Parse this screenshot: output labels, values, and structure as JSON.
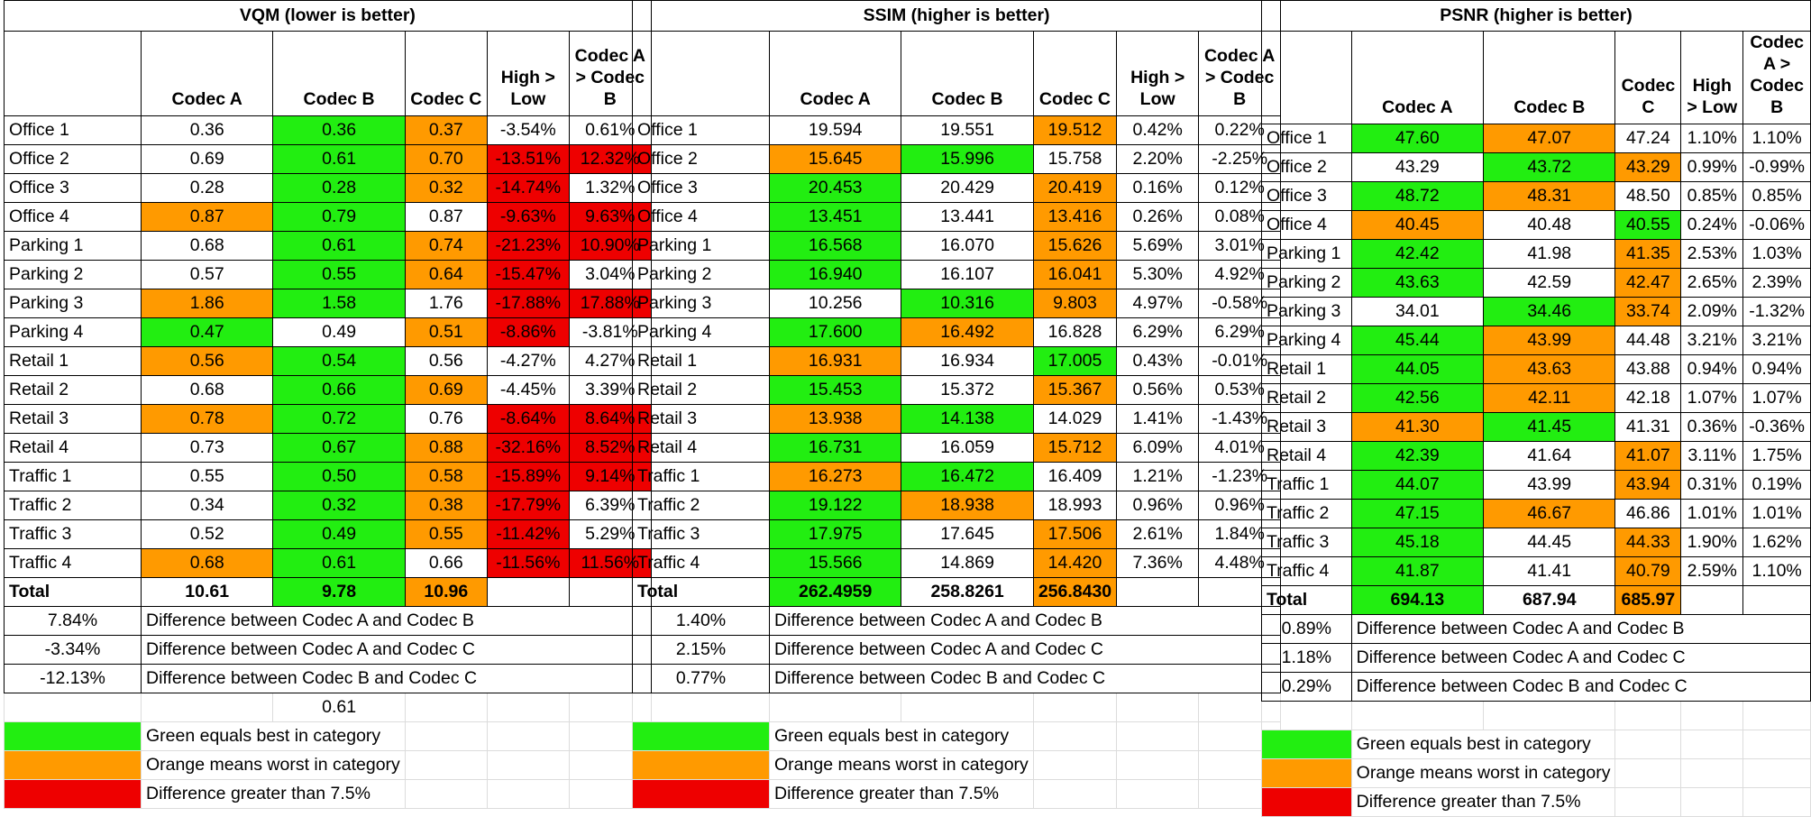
{
  "panels": [
    {
      "title": "VQM (lower is better)",
      "headers": [
        "",
        "Codec A",
        "Codec B",
        "Codec C",
        "High > Low",
        "Codec A > Codec B"
      ],
      "rows": [
        {
          "label": "Office 1",
          "a": "0.36",
          "b": "0.36",
          "c": "0.37",
          "hl": "-3.54%",
          "ab": "0.61%",
          "ca": "",
          "cb": "G",
          "cc": "O",
          "chl": "",
          "cab": ""
        },
        {
          "label": "Office 2",
          "a": "0.69",
          "b": "0.61",
          "c": "0.70",
          "hl": "-13.51%",
          "ab": "12.32%",
          "ca": "",
          "cb": "G",
          "cc": "O",
          "chl": "R",
          "cab": "R"
        },
        {
          "label": "Office 3",
          "a": "0.28",
          "b": "0.28",
          "c": "0.32",
          "hl": "-14.74%",
          "ab": "1.32%",
          "ca": "",
          "cb": "G",
          "cc": "O",
          "chl": "R",
          "cab": ""
        },
        {
          "label": "Office 4",
          "a": "0.87",
          "b": "0.79",
          "c": "0.87",
          "hl": "-9.63%",
          "ab": "9.63%",
          "ca": "O",
          "cb": "G",
          "cc": "",
          "chl": "R",
          "cab": "R"
        },
        {
          "label": "Parking 1",
          "a": "0.68",
          "b": "0.61",
          "c": "0.74",
          "hl": "-21.23%",
          "ab": "10.90%",
          "ca": "",
          "cb": "G",
          "cc": "O",
          "chl": "R",
          "cab": "R"
        },
        {
          "label": "Parking 2",
          "a": "0.57",
          "b": "0.55",
          "c": "0.64",
          "hl": "-15.47%",
          "ab": "3.04%",
          "ca": "",
          "cb": "G",
          "cc": "O",
          "chl": "R",
          "cab": ""
        },
        {
          "label": "Parking 3",
          "a": "1.86",
          "b": "1.58",
          "c": "1.76",
          "hl": "-17.88%",
          "ab": "17.88%",
          "ca": "O",
          "cb": "G",
          "cc": "",
          "chl": "R",
          "cab": "R"
        },
        {
          "label": "Parking 4",
          "a": "0.47",
          "b": "0.49",
          "c": "0.51",
          "hl": "-8.86%",
          "ab": "-3.81%",
          "ca": "G",
          "cb": "",
          "cc": "O",
          "chl": "R",
          "cab": ""
        },
        {
          "label": "Retail 1",
          "a": "0.56",
          "b": "0.54",
          "c": "0.56",
          "hl": "-4.27%",
          "ab": "4.27%",
          "ca": "O",
          "cb": "G",
          "cc": "",
          "chl": "",
          "cab": ""
        },
        {
          "label": "Retail 2",
          "a": "0.68",
          "b": "0.66",
          "c": "0.69",
          "hl": "-4.45%",
          "ab": "3.39%",
          "ca": "",
          "cb": "G",
          "cc": "O",
          "chl": "",
          "cab": ""
        },
        {
          "label": "Retail 3",
          "a": "0.78",
          "b": "0.72",
          "c": "0.76",
          "hl": "-8.64%",
          "ab": "8.64%",
          "ca": "O",
          "cb": "G",
          "cc": "",
          "chl": "R",
          "cab": "R"
        },
        {
          "label": "Retail 4",
          "a": "0.73",
          "b": "0.67",
          "c": "0.88",
          "hl": "-32.16%",
          "ab": "8.52%",
          "ca": "",
          "cb": "G",
          "cc": "O",
          "chl": "R",
          "cab": "R"
        },
        {
          "label": "Traffic 1",
          "a": "0.55",
          "b": "0.50",
          "c": "0.58",
          "hl": "-15.89%",
          "ab": "9.14%",
          "ca": "",
          "cb": "G",
          "cc": "O",
          "chl": "R",
          "cab": "R"
        },
        {
          "label": "Traffic 2",
          "a": "0.34",
          "b": "0.32",
          "c": "0.38",
          "hl": "-17.79%",
          "ab": "6.39%",
          "ca": "",
          "cb": "G",
          "cc": "O",
          "chl": "R",
          "cab": ""
        },
        {
          "label": "Traffic 3",
          "a": "0.52",
          "b": "0.49",
          "c": "0.55",
          "hl": "-11.42%",
          "ab": "5.29%",
          "ca": "",
          "cb": "G",
          "cc": "O",
          "chl": "R",
          "cab": ""
        },
        {
          "label": "Traffic 4",
          "a": "0.68",
          "b": "0.61",
          "c": "0.66",
          "hl": "-11.56%",
          "ab": "11.56%",
          "ca": "O",
          "cb": "G",
          "cc": "",
          "chl": "R",
          "cab": "R"
        }
      ],
      "total": {
        "label": "Total",
        "a": "10.61",
        "b": "9.78",
        "c": "10.96",
        "ca": "",
        "cb": "G",
        "cc": "O"
      },
      "diffs": [
        {
          "value": "7.84%",
          "text": "Difference between Codec A and Codec B"
        },
        {
          "value": "-3.34%",
          "text": "Difference between Codec A and Codec C"
        },
        {
          "value": "-12.13%",
          "text": "Difference between Codec B and Codec C"
        }
      ],
      "extra_value": "0.61"
    },
    {
      "title": "SSIM (higher is better)",
      "headers": [
        "",
        "Codec A",
        "Codec B",
        "Codec C",
        "High > Low",
        "Codec A > Codec B"
      ],
      "rows": [
        {
          "label": "Office 1",
          "a": "19.594",
          "b": "19.551",
          "c": "19.512",
          "hl": "0.42%",
          "ab": "0.22%",
          "ca": "",
          "cb": "",
          "cc": "O",
          "chl": "",
          "cab": ""
        },
        {
          "label": "Office 2",
          "a": "15.645",
          "b": "15.996",
          "c": "15.758",
          "hl": "2.20%",
          "ab": "-2.25%",
          "ca": "O",
          "cb": "G",
          "cc": "",
          "chl": "",
          "cab": ""
        },
        {
          "label": "Office 3",
          "a": "20.453",
          "b": "20.429",
          "c": "20.419",
          "hl": "0.16%",
          "ab": "0.12%",
          "ca": "G",
          "cb": "",
          "cc": "O",
          "chl": "",
          "cab": ""
        },
        {
          "label": "Office 4",
          "a": "13.451",
          "b": "13.441",
          "c": "13.416",
          "hl": "0.26%",
          "ab": "0.08%",
          "ca": "G",
          "cb": "",
          "cc": "O",
          "chl": "",
          "cab": ""
        },
        {
          "label": "Parking 1",
          "a": "16.568",
          "b": "16.070",
          "c": "15.626",
          "hl": "5.69%",
          "ab": "3.01%",
          "ca": "G",
          "cb": "",
          "cc": "O",
          "chl": "",
          "cab": ""
        },
        {
          "label": "Parking 2",
          "a": "16.940",
          "b": "16.107",
          "c": "16.041",
          "hl": "5.30%",
          "ab": "4.92%",
          "ca": "G",
          "cb": "",
          "cc": "O",
          "chl": "",
          "cab": ""
        },
        {
          "label": "Parking 3",
          "a": "10.256",
          "b": "10.316",
          "c": "9.803",
          "hl": "4.97%",
          "ab": "-0.58%",
          "ca": "",
          "cb": "G",
          "cc": "O",
          "chl": "",
          "cab": ""
        },
        {
          "label": "Parking 4",
          "a": "17.600",
          "b": "16.492",
          "c": "16.828",
          "hl": "6.29%",
          "ab": "6.29%",
          "ca": "G",
          "cb": "O",
          "cc": "",
          "chl": "",
          "cab": ""
        },
        {
          "label": "Retail 1",
          "a": "16.931",
          "b": "16.934",
          "c": "17.005",
          "hl": "0.43%",
          "ab": "-0.01%",
          "ca": "O",
          "cb": "",
          "cc": "G",
          "chl": "",
          "cab": ""
        },
        {
          "label": "Retail 2",
          "a": "15.453",
          "b": "15.372",
          "c": "15.367",
          "hl": "0.56%",
          "ab": "0.53%",
          "ca": "G",
          "cb": "",
          "cc": "O",
          "chl": "",
          "cab": ""
        },
        {
          "label": "Retail 3",
          "a": "13.938",
          "b": "14.138",
          "c": "14.029",
          "hl": "1.41%",
          "ab": "-1.43%",
          "ca": "O",
          "cb": "G",
          "cc": "",
          "chl": "",
          "cab": ""
        },
        {
          "label": "Retail 4",
          "a": "16.731",
          "b": "16.059",
          "c": "15.712",
          "hl": "6.09%",
          "ab": "4.01%",
          "ca": "G",
          "cb": "",
          "cc": "O",
          "chl": "",
          "cab": ""
        },
        {
          "label": "Traffic 1",
          "a": "16.273",
          "b": "16.472",
          "c": "16.409",
          "hl": "1.21%",
          "ab": "-1.23%",
          "ca": "O",
          "cb": "G",
          "cc": "",
          "chl": "",
          "cab": ""
        },
        {
          "label": "Traffic 2",
          "a": "19.122",
          "b": "18.938",
          "c": "18.993",
          "hl": "0.96%",
          "ab": "0.96%",
          "ca": "G",
          "cb": "O",
          "cc": "",
          "chl": "",
          "cab": ""
        },
        {
          "label": "Traffic 3",
          "a": "17.975",
          "b": "17.645",
          "c": "17.506",
          "hl": "2.61%",
          "ab": "1.84%",
          "ca": "G",
          "cb": "",
          "cc": "O",
          "chl": "",
          "cab": ""
        },
        {
          "label": "Traffic 4",
          "a": "15.566",
          "b": "14.869",
          "c": "14.420",
          "hl": "7.36%",
          "ab": "4.48%",
          "ca": "G",
          "cb": "",
          "cc": "O",
          "chl": "",
          "cab": ""
        }
      ],
      "total": {
        "label": "Total",
        "a": "262.4959",
        "b": "258.8261",
        "c": "256.8430",
        "ca": "G",
        "cb": "",
        "cc": "O"
      },
      "diffs": [
        {
          "value": "1.40%",
          "text": "Difference between Codec A and Codec B"
        },
        {
          "value": "2.15%",
          "text": "Difference between Codec A and Codec C"
        },
        {
          "value": "0.77%",
          "text": "Difference between Codec B and Codec C"
        }
      ],
      "extra_value": ""
    },
    {
      "title": "PSNR (higher is better)",
      "headers": [
        "",
        "Codec A",
        "Codec B",
        "Codec C",
        "High > Low",
        "Codec A > Codec B"
      ],
      "rows": [
        {
          "label": "Office 1",
          "a": "47.60",
          "b": "47.07",
          "c": "47.24",
          "hl": "1.10%",
          "ab": "1.10%",
          "ca": "G",
          "cb": "O",
          "cc": "",
          "chl": "",
          "cab": ""
        },
        {
          "label": "Office 2",
          "a": "43.29",
          "b": "43.72",
          "c": "43.29",
          "hl": "0.99%",
          "ab": "-0.99%",
          "ca": "",
          "cb": "G",
          "cc": "O",
          "chl": "",
          "cab": ""
        },
        {
          "label": "Office 3",
          "a": "48.72",
          "b": "48.31",
          "c": "48.50",
          "hl": "0.85%",
          "ab": "0.85%",
          "ca": "G",
          "cb": "O",
          "cc": "",
          "chl": "",
          "cab": ""
        },
        {
          "label": "Office 4",
          "a": "40.45",
          "b": "40.48",
          "c": "40.55",
          "hl": "0.24%",
          "ab": "-0.06%",
          "ca": "O",
          "cb": "",
          "cc": "G",
          "chl": "",
          "cab": ""
        },
        {
          "label": "Parking 1",
          "a": "42.42",
          "b": "41.98",
          "c": "41.35",
          "hl": "2.53%",
          "ab": "1.03%",
          "ca": "G",
          "cb": "",
          "cc": "O",
          "chl": "",
          "cab": ""
        },
        {
          "label": "Parking 2",
          "a": "43.63",
          "b": "42.59",
          "c": "42.47",
          "hl": "2.65%",
          "ab": "2.39%",
          "ca": "G",
          "cb": "",
          "cc": "O",
          "chl": "",
          "cab": ""
        },
        {
          "label": "Parking 3",
          "a": "34.01",
          "b": "34.46",
          "c": "33.74",
          "hl": "2.09%",
          "ab": "-1.32%",
          "ca": "",
          "cb": "G",
          "cc": "O",
          "chl": "",
          "cab": ""
        },
        {
          "label": "Parking 4",
          "a": "45.44",
          "b": "43.99",
          "c": "44.48",
          "hl": "3.21%",
          "ab": "3.21%",
          "ca": "G",
          "cb": "O",
          "cc": "",
          "chl": "",
          "cab": ""
        },
        {
          "label": "Retail 1",
          "a": "44.05",
          "b": "43.63",
          "c": "43.88",
          "hl": "0.94%",
          "ab": "0.94%",
          "ca": "G",
          "cb": "O",
          "cc": "",
          "chl": "",
          "cab": ""
        },
        {
          "label": "Retail 2",
          "a": "42.56",
          "b": "42.11",
          "c": "42.18",
          "hl": "1.07%",
          "ab": "1.07%",
          "ca": "G",
          "cb": "O",
          "cc": "",
          "chl": "",
          "cab": ""
        },
        {
          "label": "Retail 3",
          "a": "41.30",
          "b": "41.45",
          "c": "41.31",
          "hl": "0.36%",
          "ab": "-0.36%",
          "ca": "O",
          "cb": "G",
          "cc": "",
          "chl": "",
          "cab": ""
        },
        {
          "label": "Retail 4",
          "a": "42.39",
          "b": "41.64",
          "c": "41.07",
          "hl": "3.11%",
          "ab": "1.75%",
          "ca": "G",
          "cb": "",
          "cc": "O",
          "chl": "",
          "cab": ""
        },
        {
          "label": "Traffic 1",
          "a": "44.07",
          "b": "43.99",
          "c": "43.94",
          "hl": "0.31%",
          "ab": "0.19%",
          "ca": "G",
          "cb": "",
          "cc": "O",
          "chl": "",
          "cab": ""
        },
        {
          "label": "Traffic 2",
          "a": "47.15",
          "b": "46.67",
          "c": "46.86",
          "hl": "1.01%",
          "ab": "1.01%",
          "ca": "G",
          "cb": "O",
          "cc": "",
          "chl": "",
          "cab": ""
        },
        {
          "label": "Traffic 3",
          "a": "45.18",
          "b": "44.45",
          "c": "44.33",
          "hl": "1.90%",
          "ab": "1.62%",
          "ca": "G",
          "cb": "",
          "cc": "O",
          "chl": "",
          "cab": ""
        },
        {
          "label": "Traffic 4",
          "a": "41.87",
          "b": "41.41",
          "c": "40.79",
          "hl": "2.59%",
          "ab": "1.10%",
          "ca": "G",
          "cb": "",
          "cc": "O",
          "chl": "",
          "cab": ""
        }
      ],
      "total": {
        "label": "Total",
        "a": "694.13",
        "b": "687.94",
        "c": "685.97",
        "ca": "G",
        "cb": "",
        "cc": "O"
      },
      "diffs": [
        {
          "value": "0.89%",
          "text": "Difference between Codec A and Codec B"
        },
        {
          "value": "1.18%",
          "text": "Difference between Codec A and Codec C"
        },
        {
          "value": "0.29%",
          "text": "Difference between Codec B and Codec C"
        }
      ],
      "extra_value": ""
    }
  ],
  "legend": [
    {
      "color": "#22ee11",
      "text": "Green equals best in category"
    },
    {
      "color": "#ff9a00",
      "text": "Orange means worst in category"
    },
    {
      "color": "#ee0000",
      "text": "Difference greater than 7.5%"
    }
  ]
}
